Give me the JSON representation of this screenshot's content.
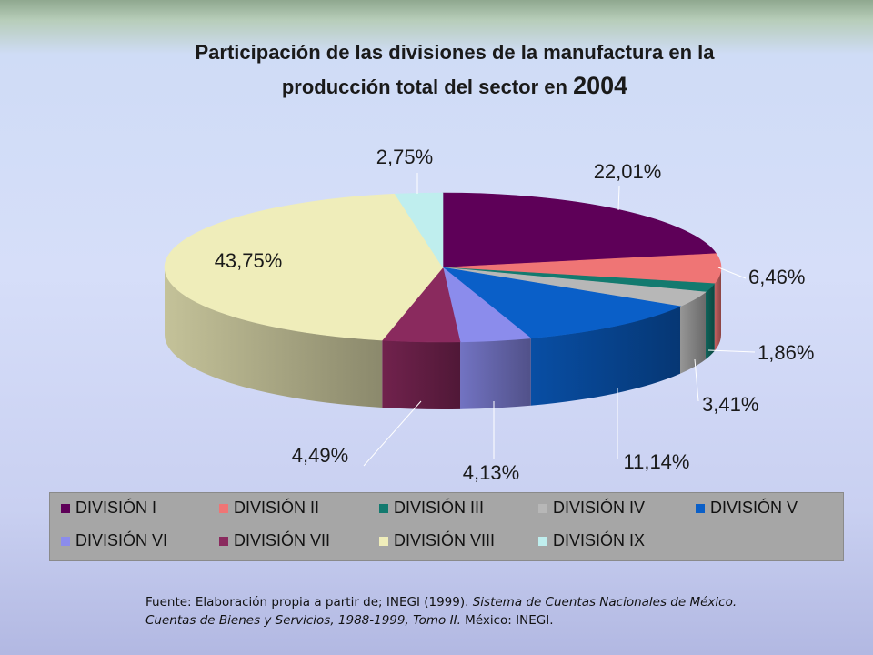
{
  "title": {
    "line1": "Participación de las divisiones de la manufactura en la",
    "line2": "producción total del sector en",
    "year": "2004"
  },
  "chart_data": {
    "type": "pie",
    "title": "Participación de las divisiones de la manufactura en la producción total del sector en 2004",
    "three_d": true,
    "legend_position": "bottom",
    "slices": [
      {
        "label": "DIVISIÓN I",
        "value": 22.01,
        "display": "22,01%",
        "color": "#5e0058"
      },
      {
        "label": "DIVISIÓN II",
        "value": 6.46,
        "display": "6,46%",
        "color": "#ef7575"
      },
      {
        "label": "DIVISIÓN III",
        "value": 1.86,
        "display": "1,86%",
        "color": "#137a6f"
      },
      {
        "label": "DIVISIÓN IV",
        "value": 3.41,
        "display": "3,41%",
        "color": "#b7b7b7"
      },
      {
        "label": "DIVISIÓN V",
        "value": 11.14,
        "display": "11,14%",
        "color": "#0a5fc8"
      },
      {
        "label": "DIVISIÓN VI",
        "value": 4.13,
        "display": "4,13%",
        "color": "#8b8cec"
      },
      {
        "label": "DIVISIÓN VII",
        "value": 4.49,
        "display": "4,49%",
        "color": "#8a2a5e"
      },
      {
        "label": "DIVISIÓN VIII",
        "value": 43.75,
        "display": "43,75%",
        "color": "#efedba"
      },
      {
        "label": "DIVISIÓN IX",
        "value": 2.75,
        "display": "2,75%",
        "color": "#bfeeee"
      }
    ]
  },
  "source": {
    "prefix": "Fuente: Elaboración propia a partir de; INEGI (1999).",
    "italic": "Sistema de Cuentas Nacionales de México. Cuentas de Bienes y Servicios, 1988-1999, Tomo II.",
    "suffix": "México: INEGI."
  }
}
